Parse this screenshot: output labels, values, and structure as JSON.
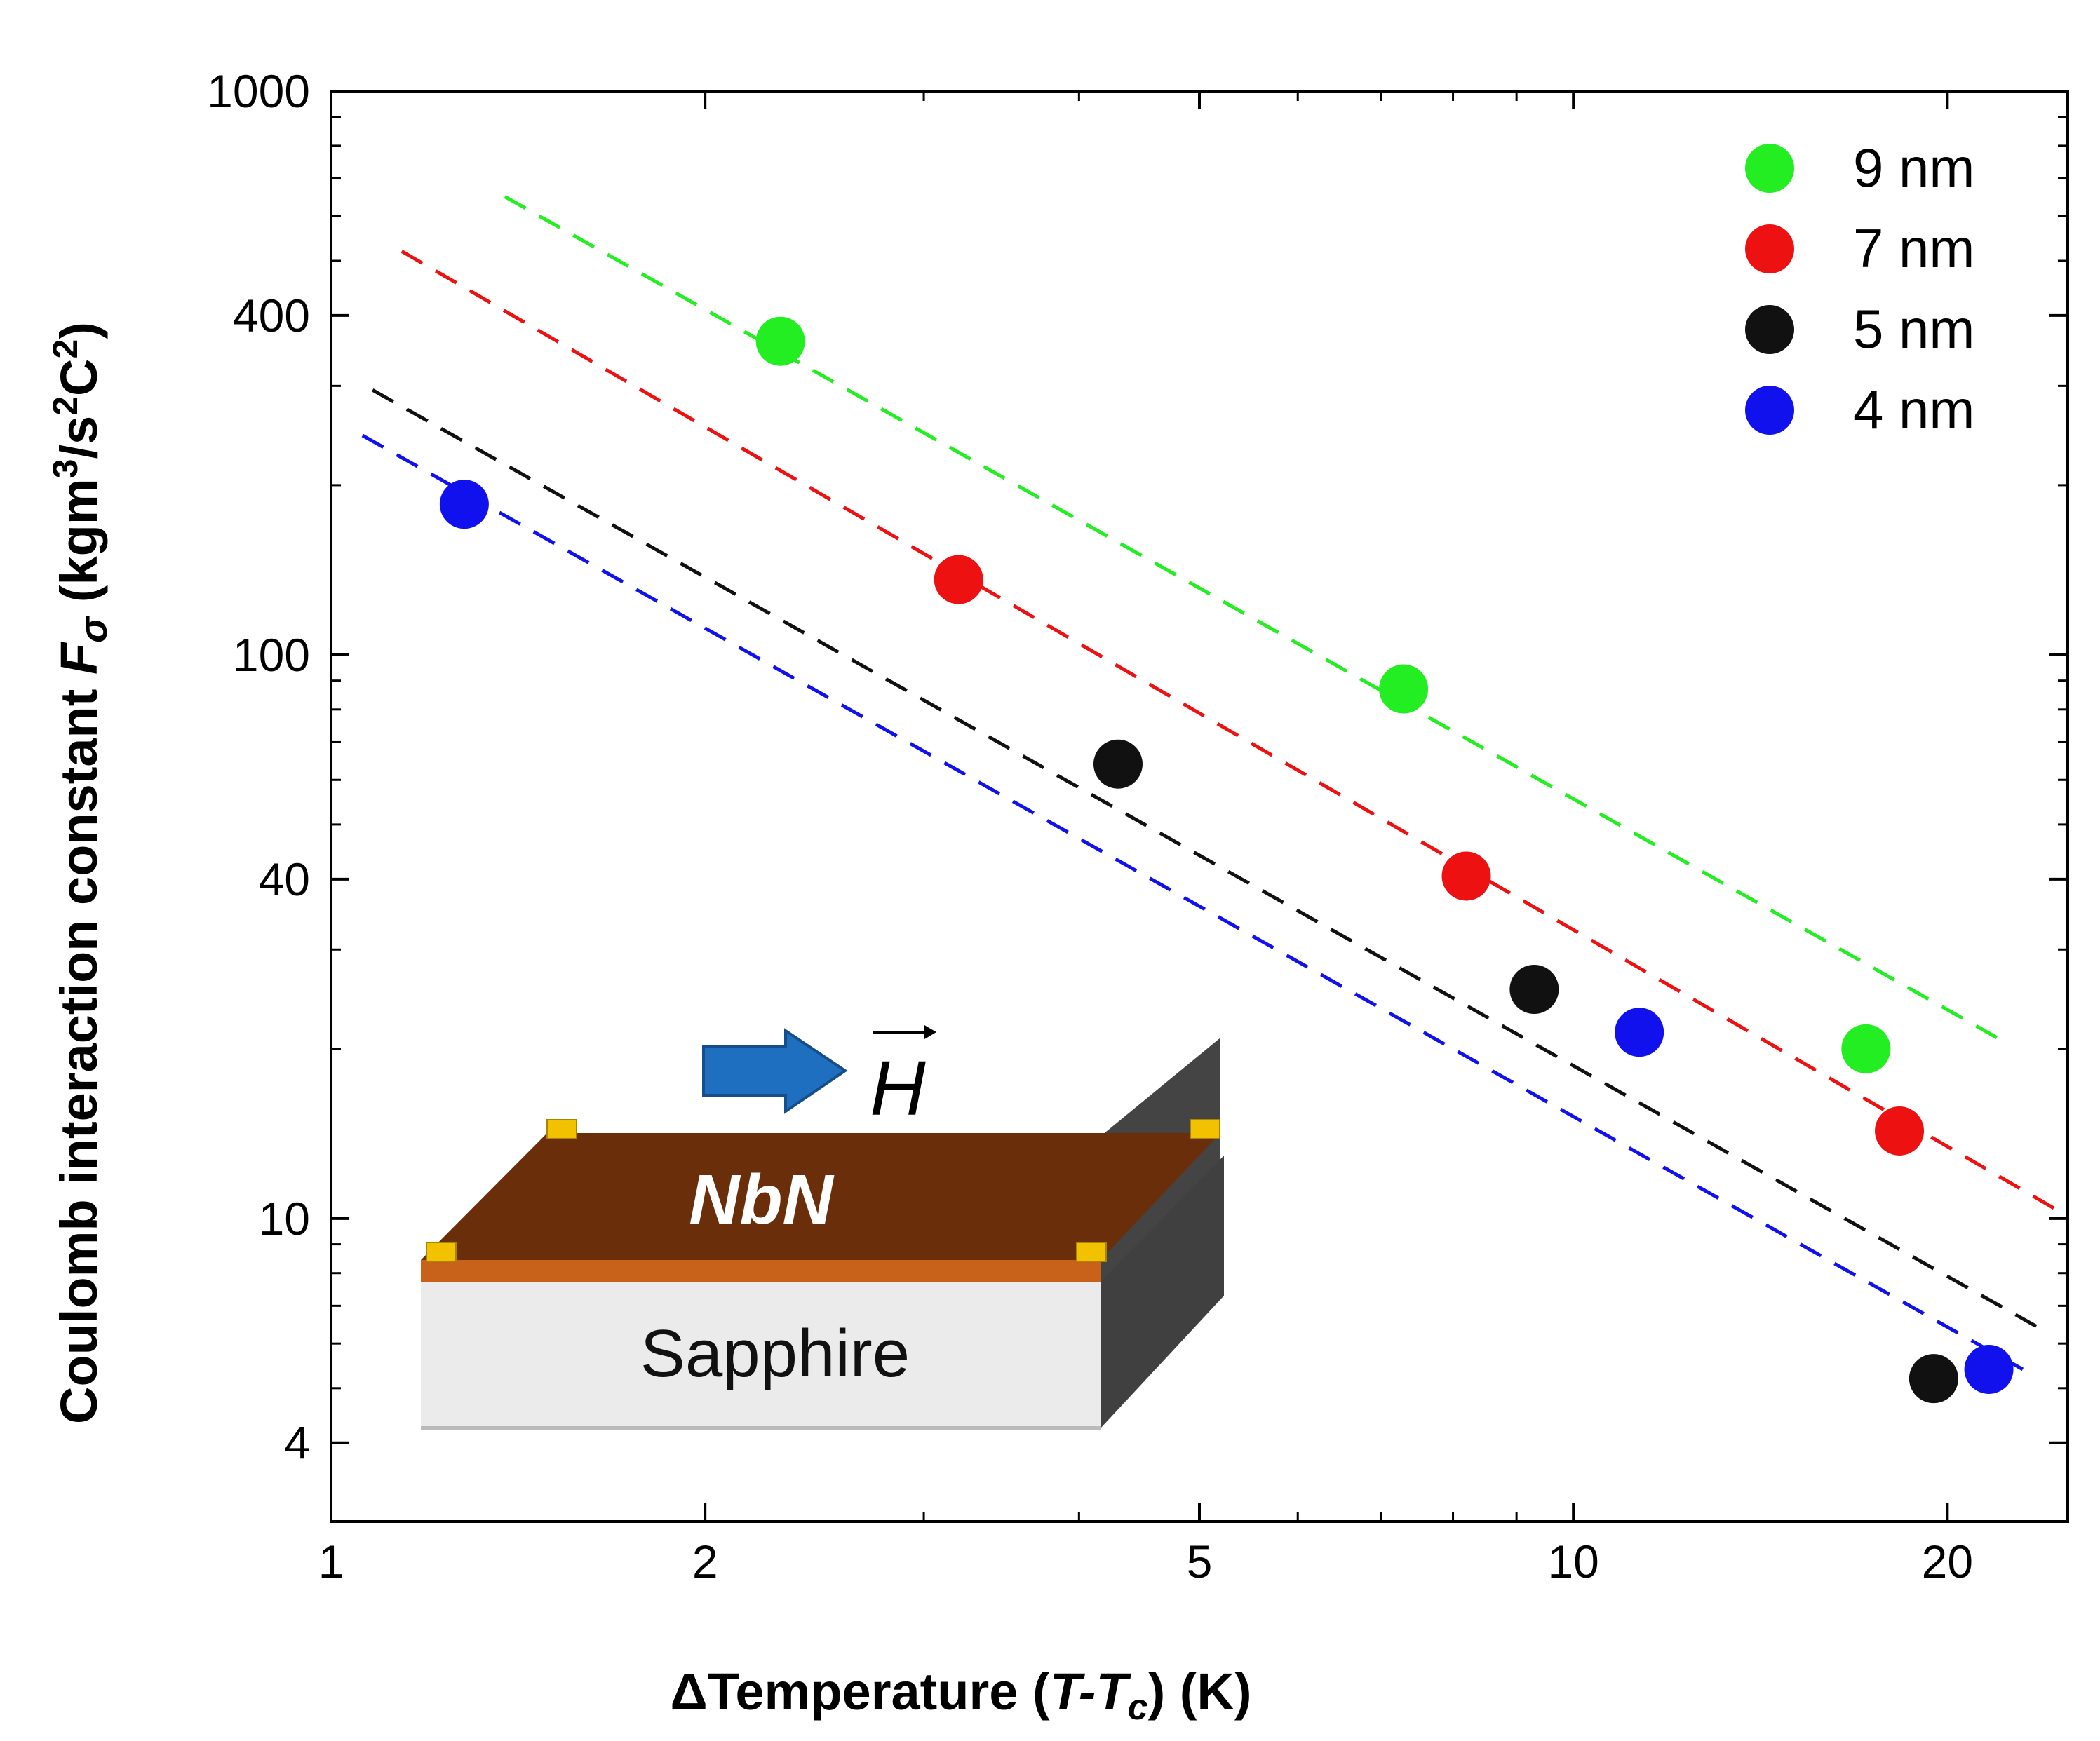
{
  "chart_data": {
    "type": "scatter",
    "x_scale": "log",
    "y_scale": "log",
    "xlim": [
      1,
      25
    ],
    "ylim": [
      2.9,
      1000
    ],
    "xlabel": {
      "pre": "ΔTemperature (",
      "t": "T",
      "dash": "-",
      "tc_main": "T",
      "tc_sub": "c",
      "post": ") (K)"
    },
    "ylabel": {
      "pre": "Coulomb interaction constant ",
      "f": "F",
      "sub": "σ",
      "units_pre": " (kgm",
      "exp1": "3",
      "units_mid": "/s",
      "exp2": "2",
      "units_c": "C",
      "exp3": "2",
      "units_post": ")"
    },
    "x_ticks": [
      {
        "value": 1,
        "label": "1"
      },
      {
        "value": 2,
        "label": "2"
      },
      {
        "value": 5,
        "label": "5"
      },
      {
        "value": 10,
        "label": "10"
      },
      {
        "value": 20,
        "label": "20"
      }
    ],
    "x_minor_ticks": [
      3,
      4,
      6,
      7,
      8,
      9
    ],
    "y_ticks": [
      {
        "value": 4,
        "label": "4"
      },
      {
        "value": 10,
        "label": "10"
      },
      {
        "value": 40,
        "label": "40"
      },
      {
        "value": 100,
        "label": "100"
      },
      {
        "value": 400,
        "label": "400"
      },
      {
        "value": 1000,
        "label": "1000"
      }
    ],
    "y_minor_ticks": [
      5,
      6,
      7,
      8,
      9,
      20,
      30,
      50,
      60,
      70,
      80,
      90,
      200,
      300,
      500,
      600,
      700,
      800,
      900
    ],
    "legend_position": "top-right",
    "series": [
      {
        "name": "9 nm",
        "color": "#22ee22",
        "points": [
          [
            2.3,
            360
          ],
          [
            7.3,
            87
          ],
          [
            17.2,
            20
          ]
        ],
        "fit": [
          [
            1.38,
            650
          ],
          [
            22.3,
            20.5
          ]
        ]
      },
      {
        "name": "7 nm",
        "color": "#ee1111",
        "points": [
          [
            3.2,
            136
          ],
          [
            8.2,
            40.5
          ],
          [
            18.3,
            14.3
          ]
        ],
        "fit": [
          [
            1.14,
            520
          ],
          [
            24.8,
            10.2
          ]
        ]
      },
      {
        "name": "5 nm",
        "color": "#111111",
        "points": [
          [
            4.3,
            64
          ],
          [
            9.3,
            25.5
          ],
          [
            19.5,
            5.2
          ]
        ],
        "fit": [
          [
            1.08,
            295
          ],
          [
            24.0,
            6.3
          ]
        ]
      },
      {
        "name": "4 nm",
        "color": "#1111ee",
        "points": [
          [
            1.28,
            185
          ],
          [
            11.3,
            21.4
          ],
          [
            21.6,
            5.4
          ]
        ],
        "fit": [
          [
            1.06,
            245
          ],
          [
            23.0,
            5.4
          ]
        ]
      }
    ],
    "inset": {
      "film_label": "NbN",
      "substrate_label": "Sapphire",
      "field_label": "H",
      "film_color": "#6b2e0a",
      "substrate_color": "#ebebeb",
      "arrow_color": "#1f6fc0"
    }
  }
}
